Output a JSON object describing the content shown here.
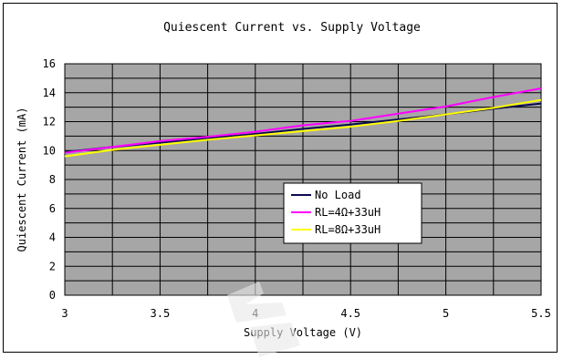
{
  "chart_data": {
    "type": "line",
    "title": "Quiescent Current vs. Supply Voltage",
    "xlabel": "Supply Voltage (V)",
    "ylabel": "Quiescent Current (mA)",
    "xlim": [
      3,
      5.5
    ],
    "ylim": [
      0,
      16
    ],
    "x_ticks": [
      "3",
      "3.5",
      "4",
      "4.5",
      "5",
      "5.5"
    ],
    "y_ticks": [
      "0",
      "2",
      "4",
      "6",
      "8",
      "10",
      "12",
      "14",
      "16"
    ],
    "grid": true,
    "legend_position": "lower-right",
    "plot_background": "#a6a6a6",
    "series": [
      {
        "name": "No Load",
        "color": "#0a0a50",
        "x": [
          3,
          3.25,
          3.5,
          3.75,
          4,
          4.25,
          4.5,
          4.75,
          5,
          5.25,
          5.5
        ],
        "y": [
          9.9,
          10.25,
          10.55,
          10.85,
          11.15,
          11.5,
          11.8,
          12.15,
          12.5,
          12.9,
          13.25
        ]
      },
      {
        "name": "RL=4Ω+33uH",
        "color": "#ff00ff",
        "x": [
          3,
          3.25,
          3.5,
          3.75,
          4,
          4.25,
          4.5,
          4.75,
          5,
          5.25,
          5.5
        ],
        "y": [
          9.85,
          10.25,
          10.65,
          10.95,
          11.3,
          11.75,
          12.05,
          12.55,
          13.05,
          13.7,
          14.3
        ]
      },
      {
        "name": "RL=8Ω+33uH",
        "color": "#ffff00",
        "x": [
          3,
          3.25,
          3.5,
          3.75,
          4,
          4.25,
          4.5,
          4.75,
          5,
          5.25,
          5.5
        ],
        "y": [
          9.6,
          10.05,
          10.4,
          10.75,
          11.05,
          11.35,
          11.65,
          12.05,
          12.5,
          12.95,
          13.5
        ]
      }
    ]
  }
}
